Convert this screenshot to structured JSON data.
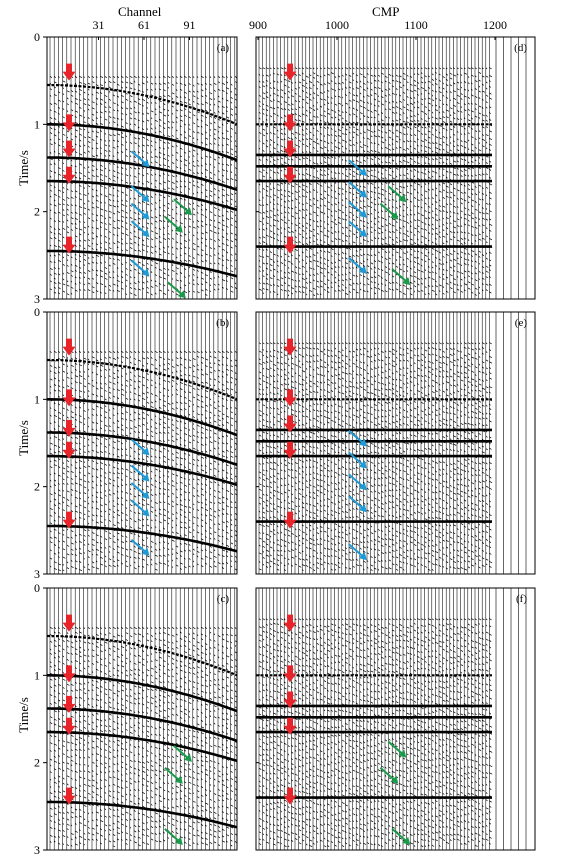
{
  "figure": {
    "x_axis_left": "Channel",
    "x_axis_right": "CMP",
    "y_axis": "Time/s",
    "arrow_colors": {
      "red": "#e8232a",
      "blue": "#1e9ad6",
      "green": "#1a9a4a"
    }
  },
  "chart_data": [
    {
      "type": "seismic-gather",
      "panel_label": "(a)",
      "xlabel": "Channel",
      "ylabel": "Time/s",
      "x_ticks": [
        31,
        61,
        91
      ],
      "y_ticks": [
        0,
        1,
        2,
        3
      ],
      "ylim": [
        0,
        3
      ],
      "red_arrow_times": [
        0.42,
        1.0,
        1.3,
        1.6,
        2.4
      ],
      "blue_arrows": [
        [
          58,
          1.4
        ],
        [
          58,
          1.8
        ],
        [
          58,
          2.0
        ],
        [
          58,
          2.2
        ],
        [
          58,
          2.65
        ]
      ],
      "green_arrows": [
        [
          86,
          1.95
        ],
        [
          80,
          2.15
        ],
        [
          82,
          2.9
        ]
      ]
    },
    {
      "type": "seismic-gather",
      "panel_label": "(b)",
      "xlabel": "",
      "ylabel": "Time/s",
      "x_ticks": [],
      "y_ticks": [
        0,
        1,
        2,
        3
      ],
      "ylim": [
        0,
        3
      ],
      "red_arrow_times": [
        0.42,
        1.0,
        1.35,
        1.6,
        2.4
      ],
      "blue_arrows": [
        [
          58,
          1.55
        ],
        [
          58,
          1.85
        ],
        [
          58,
          2.05
        ],
        [
          58,
          2.25
        ],
        [
          58,
          2.7
        ]
      ],
      "green_arrows": []
    },
    {
      "type": "seismic-gather",
      "panel_label": "(c)",
      "xlabel": "",
      "ylabel": "Time/s",
      "x_ticks": [],
      "y_ticks": [
        0,
        1,
        2,
        3
      ],
      "ylim": [
        0,
        3
      ],
      "red_arrow_times": [
        0.42,
        1.0,
        1.35,
        1.6,
        2.4
      ],
      "blue_arrows": [],
      "green_arrows": [
        [
          86,
          1.9
        ],
        [
          80,
          2.15
        ],
        [
          80,
          2.85
        ]
      ]
    },
    {
      "type": "seismic-gather",
      "panel_label": "(d)",
      "xlabel": "CMP",
      "ylabel": "",
      "x_ticks": [
        900,
        1000,
        1100,
        1200
      ],
      "y_ticks": [],
      "ylim": [
        0,
        3
      ],
      "red_arrow_times": [
        0.42,
        1.0,
        1.3,
        1.6,
        2.4
      ],
      "blue_arrows": [
        [
          1025,
          1.5
        ],
        [
          1025,
          1.75
        ],
        [
          1025,
          1.98
        ],
        [
          1025,
          2.2
        ],
        [
          1025,
          2.62
        ]
      ],
      "green_arrows": [
        [
          1075,
          1.8
        ],
        [
          1065,
          2.0
        ],
        [
          1080,
          2.75
        ]
      ]
    },
    {
      "type": "seismic-gather",
      "panel_label": "(e)",
      "xlabel": "",
      "ylabel": "",
      "x_ticks": [],
      "y_ticks": [],
      "ylim": [
        0,
        3
      ],
      "red_arrow_times": [
        0.42,
        1.0,
        1.3,
        1.6,
        2.4
      ],
      "blue_arrows": [
        [
          1025,
          1.45
        ],
        [
          1025,
          1.7
        ],
        [
          1025,
          1.95
        ],
        [
          1025,
          2.2
        ],
        [
          1025,
          2.75
        ]
      ],
      "green_arrows": []
    },
    {
      "type": "seismic-gather",
      "panel_label": "(f)",
      "xlabel": "",
      "ylabel": "",
      "x_ticks": [],
      "y_ticks": [],
      "ylim": [
        0,
        3
      ],
      "red_arrow_times": [
        0.42,
        1.0,
        1.3,
        1.6,
        2.4
      ],
      "blue_arrows": [],
      "green_arrows": [
        [
          1075,
          1.85
        ],
        [
          1065,
          2.15
        ],
        [
          1080,
          2.85
        ]
      ]
    }
  ]
}
